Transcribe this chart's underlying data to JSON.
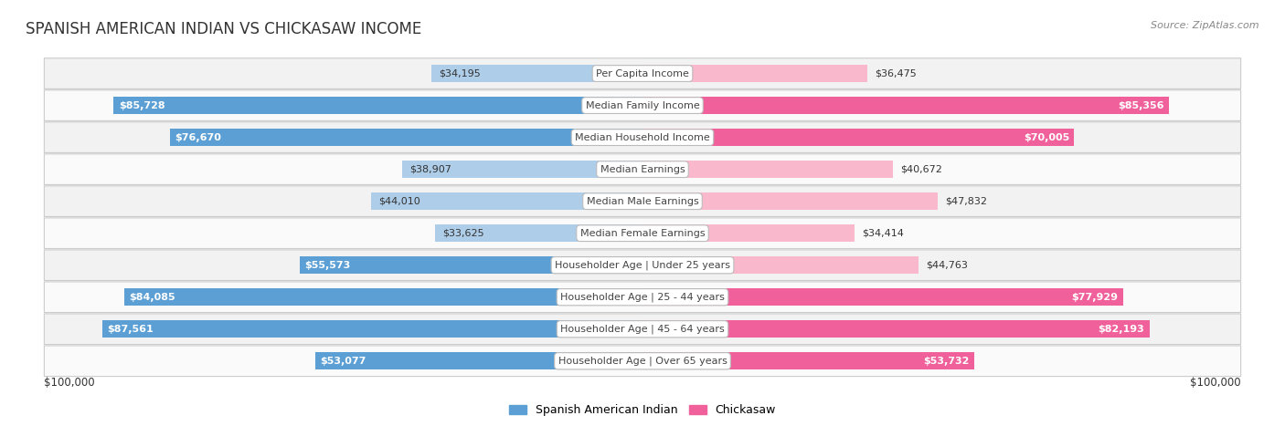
{
  "title": "SPANISH AMERICAN INDIAN VS CHICKASAW INCOME",
  "source": "Source: ZipAtlas.com",
  "categories": [
    "Per Capita Income",
    "Median Family Income",
    "Median Household Income",
    "Median Earnings",
    "Median Male Earnings",
    "Median Female Earnings",
    "Householder Age | Under 25 years",
    "Householder Age | 25 - 44 years",
    "Householder Age | 45 - 64 years",
    "Householder Age | Over 65 years"
  ],
  "left_values": [
    34195,
    85728,
    76670,
    38907,
    44010,
    33625,
    55573,
    84085,
    87561,
    53077
  ],
  "right_values": [
    36475,
    85356,
    70005,
    40672,
    47832,
    34414,
    44763,
    77929,
    82193,
    53732
  ],
  "left_labels": [
    "$34,195",
    "$85,728",
    "$76,670",
    "$38,907",
    "$44,010",
    "$33,625",
    "$55,573",
    "$84,085",
    "$87,561",
    "$53,077"
  ],
  "right_labels": [
    "$36,475",
    "$85,356",
    "$70,005",
    "$40,672",
    "$47,832",
    "$34,414",
    "$44,763",
    "$77,929",
    "$82,193",
    "$53,732"
  ],
  "left_color_light": "#aecde8",
  "left_color_dark": "#5b9fd4",
  "right_color_light": "#f9b8cc",
  "right_color_dark": "#f0609a",
  "left_legend": "Spanish American Indian",
  "right_legend": "Chickasaw",
  "max_value": 100000,
  "large_threshold": 50000,
  "title_fontsize": 12,
  "label_fontsize": 8,
  "category_fontsize": 8
}
